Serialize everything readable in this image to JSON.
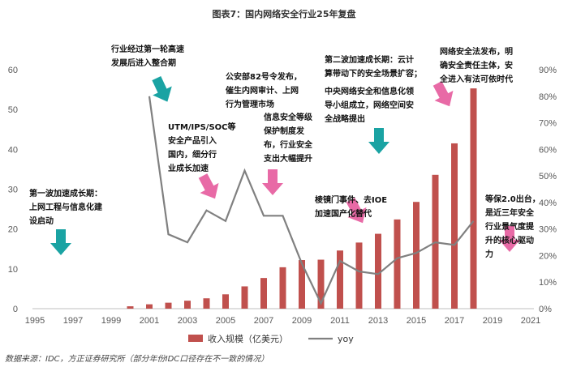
{
  "chart_data": {
    "type": "bar+line",
    "title": "图表7：国内网络安全行业25年复盘",
    "x": [
      "1995",
      "1996",
      "1997",
      "1998",
      "1999",
      "2000",
      "2001",
      "2002",
      "2003",
      "2004",
      "2005",
      "2006",
      "2007",
      "2008",
      "2009",
      "2010",
      "2011",
      "2012",
      "2013",
      "2014",
      "2015",
      "2016",
      "2017",
      "2018",
      "2019",
      "2020",
      "2021"
    ],
    "x_tick_labels": [
      "1995",
      "1997",
      "1999",
      "2001",
      "2003",
      "2005",
      "2007",
      "2009",
      "2011",
      "2013",
      "2015",
      "2017",
      "2019",
      "2021"
    ],
    "series": [
      {
        "name": "收入规模（亿美元）",
        "type": "bar",
        "axis": "left",
        "color": "#c0504d",
        "values": [
          null,
          null,
          null,
          null,
          null,
          0.6,
          1.1,
          1.5,
          2.0,
          2.6,
          3.6,
          5.6,
          7.7,
          10.4,
          12.2,
          12.3,
          14.6,
          16.6,
          18.8,
          22.4,
          26.8,
          33.6,
          41.5,
          55.3,
          null,
          null,
          null
        ]
      },
      {
        "name": "yoy",
        "type": "line",
        "axis": "right",
        "color": "#808080",
        "values": [
          null,
          null,
          null,
          null,
          null,
          null,
          0.8,
          0.28,
          0.25,
          0.37,
          0.33,
          0.52,
          0.35,
          0.35,
          0.17,
          0.02,
          0.18,
          0.14,
          0.13,
          0.19,
          0.21,
          0.25,
          0.24,
          0.33,
          null,
          null,
          null
        ]
      }
    ],
    "y_left": {
      "min": 0,
      "max": 60,
      "ticks": [
        0,
        10,
        20,
        30,
        40,
        50,
        60
      ]
    },
    "y_right": {
      "min": 0,
      "max": 0.9,
      "ticks": [
        "0%",
        "10%",
        "20%",
        "30%",
        "40%",
        "50%",
        "60%",
        "70%",
        "80%",
        "90%"
      ]
    },
    "legend": {
      "position": "bottom",
      "items": [
        "收入规模（亿美元）",
        "yoy"
      ]
    },
    "annotations": [
      {
        "id": "a1",
        "lines": [
          "第一波加速成长期：",
          "上网工程与信息化建",
          "设启动"
        ]
      },
      {
        "id": "a2",
        "lines": [
          "行业经过第一轮高速",
          "发展后进入整合期"
        ]
      },
      {
        "id": "a3",
        "lines": [
          "UTM/IPS/SOC等",
          "安全产品引入",
          "国内，细分行",
          "业成长加速"
        ]
      },
      {
        "id": "a4",
        "lines": [
          "公安部82号令发布，",
          "催生内网审计、上网",
          "行为管理市场"
        ]
      },
      {
        "id": "a5",
        "lines": [
          "信息安全等级",
          "保护制度发",
          "布，行业安全",
          "支出大幅提升"
        ]
      },
      {
        "id": "a6",
        "lines": [
          "棱镜门事件、去IOE",
          "加速国产化替代"
        ]
      },
      {
        "id": "a7",
        "lines": [
          "第二波加速成长期：云计",
          "算带动下的安全场景扩容；"
        ]
      },
      {
        "id": "a8",
        "lines": [
          "中央网络安全和信息化领",
          "导小组成立，网络空间安",
          "全战略提出"
        ]
      },
      {
        "id": "a9",
        "lines": [
          "网络安全法发布，明",
          "确安全责任主体，安",
          "全进入有法可依时代"
        ]
      },
      {
        "id": "a10",
        "lines": [
          "等保2.0出台，",
          "是近三年安全",
          "行业景气度提",
          "升的核心驱动",
          "力"
        ]
      }
    ],
    "arrow_colors": {
      "teal": "#1aa3a3",
      "pink": "#e86aa6"
    }
  },
  "source_note": "数据来源：IDC，方正证券研究所（部分年份IDC口径存在不一致的情况）"
}
